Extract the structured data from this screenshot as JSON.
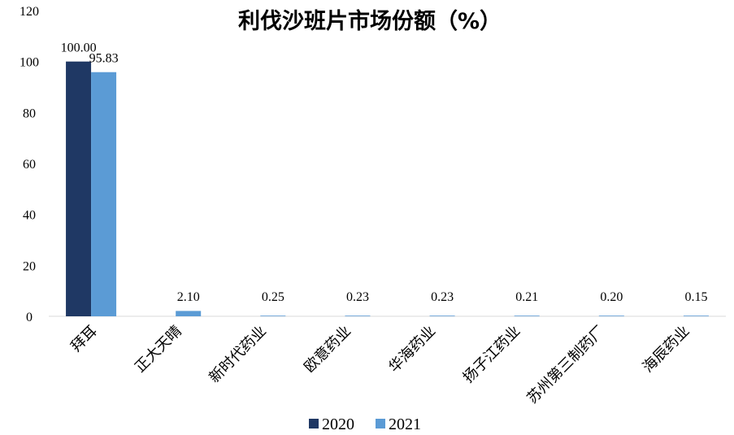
{
  "chart_data": {
    "type": "bar",
    "title": "利伐沙班片市场份额（%）",
    "xlabel": "",
    "ylabel": "",
    "ylim": [
      0,
      120
    ],
    "yticks": [
      "0",
      "20",
      "40",
      "60",
      "80",
      "100",
      "120"
    ],
    "grid": false,
    "legend_position": "bottom",
    "categories": [
      "拜耳",
      "正大天晴",
      "新时代药业",
      "欧意药业",
      "华海药业",
      "扬子江药业",
      "苏州第三制药厂",
      "海辰药业"
    ],
    "series": [
      {
        "name": "2020",
        "color": "#1f3864",
        "values": [
          100.0,
          null,
          null,
          null,
          null,
          null,
          null,
          null
        ],
        "labels": [
          "100.00",
          "",
          "",
          "",
          "",
          "",
          "",
          ""
        ]
      },
      {
        "name": "2021",
        "color": "#5b9bd5",
        "values": [
          95.83,
          2.1,
          0.25,
          0.23,
          0.23,
          0.21,
          0.2,
          0.15
        ],
        "labels": [
          "95.83",
          "2.10",
          "0.25",
          "0.23",
          "0.23",
          "0.21",
          "0.20",
          "0.15"
        ]
      }
    ]
  }
}
